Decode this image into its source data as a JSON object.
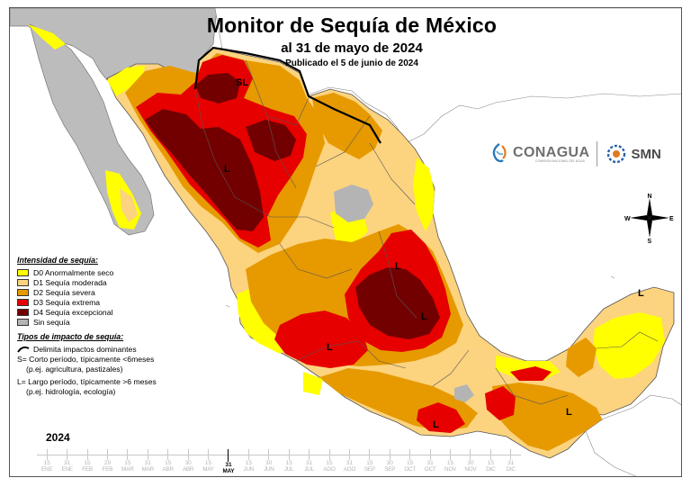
{
  "header": {
    "title": "Monitor de Sequía de México",
    "date_line": "al 31 de mayo de 2024",
    "published_line": "Publicado el 5 de junio de 2024"
  },
  "logos": {
    "conagua": "CONAGUA",
    "conagua_sub": "COMISIÓN NACIONAL DEL AGUA",
    "smn": "SMN",
    "conagua_icon": "conagua-swirl-icon",
    "smn_icon": "smn-gear-icon"
  },
  "compass": {
    "n": "N",
    "s": "S",
    "e": "E",
    "w": "W"
  },
  "map_labels": [
    {
      "id": "sl-north",
      "text": "SL"
    },
    {
      "id": "l-northwest",
      "text": "L"
    },
    {
      "id": "l-center-north",
      "text": "L"
    },
    {
      "id": "l-center",
      "text": "L"
    },
    {
      "id": "l-west",
      "text": "L"
    },
    {
      "id": "l-south",
      "text": "L"
    },
    {
      "id": "l-southeast",
      "text": "L"
    },
    {
      "id": "l-yucatan",
      "text": "L"
    }
  ],
  "legend": {
    "title": "Intensidad de sequía:",
    "items": [
      {
        "code": "D0",
        "label": "D0 Anormalmente seco",
        "color": "#ffff00"
      },
      {
        "code": "D1",
        "label": "D1 Sequía moderada",
        "color": "#fcd37f"
      },
      {
        "code": "D2",
        "label": "D2 Sequía severa",
        "color": "#e69a00"
      },
      {
        "code": "D3",
        "label": "D3 Sequía extrema",
        "color": "#e60000"
      },
      {
        "code": "D4",
        "label": "D4 Sequía excepcional",
        "color": "#730000"
      },
      {
        "code": "NONE",
        "label": "Sin sequía",
        "color": "#b4b4b4"
      }
    ]
  },
  "impacts": {
    "title": "Tipos de impacto de sequía:",
    "line_label": "Delimita impactos dominantes",
    "short_term": "S= Corto período, típicamente <6meses",
    "short_term_example": "(p.ej. agricultura, pastizales)",
    "long_term": "L= Largo período, típicamente >6 meses",
    "long_term_example": "(p.ej. hidrología, ecología)"
  },
  "timeline": {
    "year": "2024",
    "ticks": [
      {
        "day": "15",
        "month": "ENE"
      },
      {
        "day": "31",
        "month": "ENE"
      },
      {
        "day": "15",
        "month": "FEB"
      },
      {
        "day": "29",
        "month": "FEB"
      },
      {
        "day": "15",
        "month": "MAR"
      },
      {
        "day": "31",
        "month": "MAR"
      },
      {
        "day": "15",
        "month": "ABR"
      },
      {
        "day": "30",
        "month": "ABR"
      },
      {
        "day": "15",
        "month": "MAY"
      },
      {
        "day": "31",
        "month": "MAY",
        "current": true
      },
      {
        "day": "15",
        "month": "JUN"
      },
      {
        "day": "30",
        "month": "JUN"
      },
      {
        "day": "15",
        "month": "JUL"
      },
      {
        "day": "31",
        "month": "JUL"
      },
      {
        "day": "15",
        "month": "AGO"
      },
      {
        "day": "31",
        "month": "AGO"
      },
      {
        "day": "15",
        "month": "SEP"
      },
      {
        "day": "30",
        "month": "SEP"
      },
      {
        "day": "15",
        "month": "OCT"
      },
      {
        "day": "31",
        "month": "OCT"
      },
      {
        "day": "15",
        "month": "NOV"
      },
      {
        "day": "30",
        "month": "NOV"
      },
      {
        "day": "15",
        "month": "DIC"
      },
      {
        "day": "31",
        "month": "DIC"
      }
    ]
  }
}
